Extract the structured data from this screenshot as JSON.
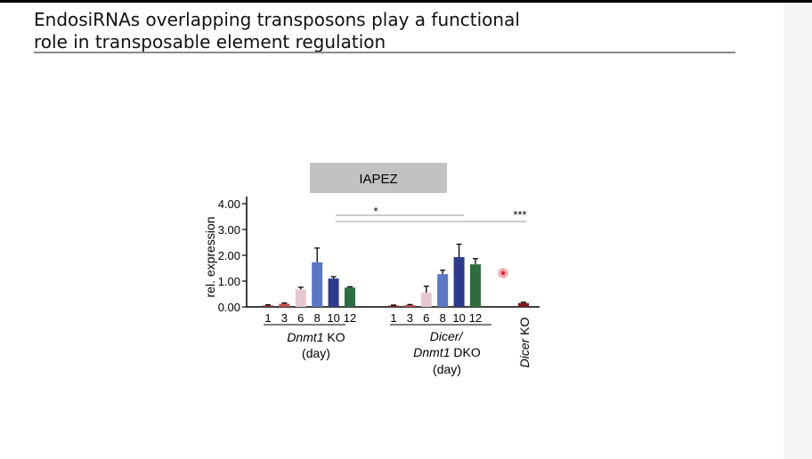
{
  "slide": {
    "title_line1": "EndosiRNAs overlapping transposons play a functional",
    "title_line2": "role in transposable element regulation"
  },
  "chart_data": {
    "type": "bar",
    "title": "IAPEZ",
    "ylabel": "rel. expression",
    "ylim": [
      0,
      4
    ],
    "yticks": [
      "4.00",
      "3.00",
      "2.00",
      "1.00",
      "0.00"
    ],
    "groups": [
      {
        "name_italic": "Dnmt1",
        "name_rest": " KO",
        "sub": "(day)",
        "categories": [
          "1",
          "3",
          "6",
          "8",
          "10",
          "12"
        ],
        "values": [
          0.05,
          0.12,
          0.68,
          1.73,
          1.1,
          0.75
        ],
        "errors": [
          0.03,
          0.03,
          0.08,
          0.55,
          0.07,
          0.03
        ],
        "colors": [
          "#8c2b2b",
          "#c0504d",
          "#e8c8d0",
          "#5b78c4",
          "#2e3a8c",
          "#2e6b3e"
        ]
      },
      {
        "name_italic_1": "Dicer/",
        "name_italic_2": "Dnmt1",
        "name_rest": " DKO",
        "sub": "(day)",
        "categories": [
          "1",
          "3",
          "6",
          "8",
          "10",
          "12"
        ],
        "values": [
          0.05,
          0.07,
          0.55,
          1.27,
          1.93,
          1.65
        ],
        "errors": [
          0.02,
          0.02,
          0.25,
          0.15,
          0.5,
          0.22
        ],
        "colors": [
          "#8c2b2b",
          "#c0504d",
          "#e8c8d0",
          "#5b78c4",
          "#2e3a8c",
          "#2e6b3e"
        ]
      },
      {
        "name_italic": "Dicer",
        "name_rest": " KO",
        "categories": [
          ""
        ],
        "values": [
          0.15
        ],
        "errors": [
          0.03
        ],
        "colors": [
          "#7a1c1c"
        ]
      }
    ],
    "significance": [
      {
        "label": "*"
      },
      {
        "label": "***"
      }
    ],
    "grid": false
  }
}
